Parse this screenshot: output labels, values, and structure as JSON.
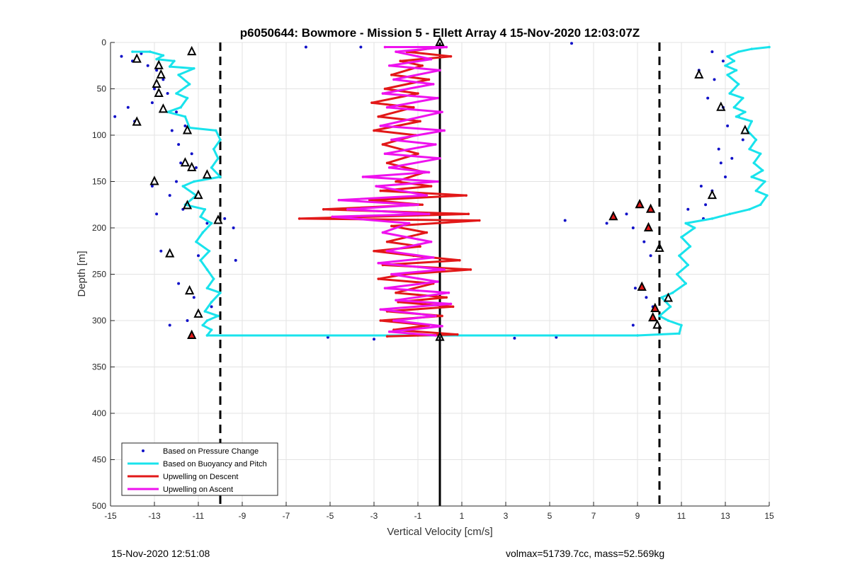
{
  "chart_data": {
    "type": "scatter",
    "title": "p6050644: Bowmore - Mission 5 - Ellett Array 4 15-Nov-2020 12:03:07Z",
    "xlabel": "Vertical Velocity [cm/s]",
    "ylabel": "Depth [m]",
    "xlim": [
      -15,
      15
    ],
    "ylim": [
      0,
      500
    ],
    "y_reversed": true,
    "x_ticks": [
      -15,
      -13,
      -11,
      -9,
      -7,
      -5,
      -3,
      -1,
      1,
      3,
      5,
      7,
      9,
      11,
      13,
      15
    ],
    "y_ticks": [
      0,
      50,
      100,
      150,
      200,
      250,
      300,
      350,
      400,
      450,
      500
    ],
    "grid": true,
    "legend_position": "bottom-left",
    "reference_lines": [
      {
        "x": -10,
        "style": "dashed",
        "color": "#000000"
      },
      {
        "x": 0,
        "style": "solid",
        "color": "#000000"
      },
      {
        "x": 10,
        "style": "dashed",
        "color": "#000000"
      }
    ],
    "series": [
      {
        "name": "Based on Pressure Change",
        "style": "dots",
        "color": "#1010c8",
        "points": [
          [
            -14.5,
            15
          ],
          [
            -14.0,
            20
          ],
          [
            -13.6,
            12
          ],
          [
            -13.3,
            25
          ],
          [
            -12.9,
            30
          ],
          [
            -12.6,
            40
          ],
          [
            -13.0,
            50
          ],
          [
            -12.4,
            55
          ],
          [
            -13.1,
            65
          ],
          [
            -14.2,
            70
          ],
          [
            -14.8,
            80
          ],
          [
            -13.9,
            85
          ],
          [
            -12.0,
            75
          ],
          [
            -11.6,
            90
          ],
          [
            -12.2,
            95
          ],
          [
            -11.9,
            110
          ],
          [
            -11.3,
            120
          ],
          [
            -11.8,
            130
          ],
          [
            -11.1,
            135
          ],
          [
            -12.0,
            150
          ],
          [
            -13.1,
            155
          ],
          [
            -12.3,
            165
          ],
          [
            -11.7,
            180
          ],
          [
            -12.9,
            185
          ],
          [
            -10.6,
            195
          ],
          [
            -9.8,
            190
          ],
          [
            -9.4,
            200
          ],
          [
            -12.7,
            225
          ],
          [
            -11.0,
            230
          ],
          [
            -9.3,
            235
          ],
          [
            -11.9,
            260
          ],
          [
            -11.2,
            275
          ],
          [
            -10.4,
            285
          ],
          [
            -11.5,
            300
          ],
          [
            -12.3,
            305
          ],
          [
            -5.1,
            318
          ],
          [
            -3.0,
            320
          ],
          [
            3.4,
            319
          ],
          [
            5.3,
            318
          ],
          [
            -6.1,
            5
          ],
          [
            -3.6,
            5
          ],
          [
            6.0,
            1
          ],
          [
            5.7,
            192
          ],
          [
            7.6,
            195
          ],
          [
            8.5,
            185
          ],
          [
            8.8,
            200
          ],
          [
            9.3,
            215
          ],
          [
            9.6,
            230
          ],
          [
            8.9,
            265
          ],
          [
            9.4,
            275
          ],
          [
            9.7,
            285
          ],
          [
            8.8,
            305
          ],
          [
            12.4,
            10
          ],
          [
            12.9,
            20
          ],
          [
            11.8,
            30
          ],
          [
            12.5,
            40
          ],
          [
            12.2,
            60
          ],
          [
            12.9,
            70
          ],
          [
            13.6,
            80
          ],
          [
            13.1,
            90
          ],
          [
            13.8,
            105
          ],
          [
            12.7,
            115
          ],
          [
            13.3,
            125
          ],
          [
            12.8,
            130
          ],
          [
            13.0,
            145
          ],
          [
            11.9,
            155
          ],
          [
            12.4,
            160
          ],
          [
            12.1,
            175
          ],
          [
            11.3,
            180
          ],
          [
            12.0,
            190
          ]
        ]
      },
      {
        "name": "Based on Buoyancy and Pitch",
        "style": "line",
        "color": "#19e3ec",
        "points": [
          [
            -14.0,
            10
          ],
          [
            -13.2,
            10
          ],
          [
            -12.6,
            14
          ],
          [
            -12.9,
            18
          ],
          [
            -12.1,
            20
          ],
          [
            -12.3,
            26
          ],
          [
            -11.2,
            28
          ],
          [
            -11.9,
            35
          ],
          [
            -11.4,
            45
          ],
          [
            -12.0,
            55
          ],
          [
            -11.5,
            60
          ],
          [
            -11.8,
            70
          ],
          [
            -12.4,
            75
          ],
          [
            -11.6,
            80
          ],
          [
            -11.4,
            92
          ],
          [
            -10.2,
            95
          ],
          [
            -10.0,
            105
          ],
          [
            -10.3,
            115
          ],
          [
            -10.1,
            125
          ],
          [
            -10.4,
            135
          ],
          [
            -10.0,
            145
          ],
          [
            -11.2,
            150
          ],
          [
            -11.7,
            155
          ],
          [
            -11.1,
            165
          ],
          [
            -11.6,
            175
          ],
          [
            -10.7,
            180
          ],
          [
            -10.9,
            188
          ],
          [
            -10.4,
            195
          ],
          [
            -10.8,
            205
          ],
          [
            -11.1,
            215
          ],
          [
            -10.5,
            225
          ],
          [
            -10.9,
            235
          ],
          [
            -10.6,
            245
          ],
          [
            -10.3,
            255
          ],
          [
            -10.6,
            265
          ],
          [
            -10.0,
            270
          ],
          [
            -10.4,
            280
          ],
          [
            -10.7,
            290
          ],
          [
            -10.1,
            295
          ],
          [
            -10.6,
            300
          ],
          [
            -10.8,
            305
          ],
          [
            -10.4,
            310
          ],
          [
            -10.6,
            316
          ],
          [
            -1.0,
            316
          ],
          [
            9.0,
            316
          ],
          [
            10.9,
            314
          ],
          [
            11.0,
            305
          ],
          [
            10.4,
            300
          ],
          [
            10.0,
            295
          ],
          [
            10.5,
            285
          ],
          [
            10.1,
            275
          ],
          [
            10.6,
            270
          ],
          [
            11.2,
            260
          ],
          [
            10.8,
            250
          ],
          [
            11.3,
            240
          ],
          [
            10.9,
            230
          ],
          [
            11.4,
            220
          ],
          [
            11.0,
            210
          ],
          [
            11.6,
            200
          ],
          [
            11.2,
            195
          ],
          [
            12.4,
            190
          ],
          [
            13.2,
            185
          ],
          [
            14.1,
            180
          ],
          [
            14.6,
            175
          ],
          [
            14.9,
            165
          ],
          [
            14.4,
            160
          ],
          [
            14.8,
            150
          ],
          [
            14.2,
            145
          ],
          [
            14.7,
            138
          ],
          [
            14.3,
            130
          ],
          [
            14.6,
            120
          ],
          [
            14.1,
            115
          ],
          [
            14.4,
            105
          ],
          [
            14.0,
            95
          ],
          [
            14.2,
            85
          ],
          [
            13.5,
            80
          ],
          [
            13.9,
            75
          ],
          [
            13.4,
            70
          ],
          [
            13.8,
            60
          ],
          [
            13.2,
            55
          ],
          [
            13.6,
            45
          ],
          [
            13.1,
            35
          ],
          [
            13.5,
            30
          ],
          [
            13.0,
            25
          ],
          [
            13.4,
            20
          ],
          [
            13.1,
            15
          ],
          [
            13.6,
            10
          ],
          [
            14.2,
            7
          ],
          [
            15.0,
            5
          ]
        ]
      },
      {
        "name": "Upwelling on Descent",
        "style": "line",
        "color": "#e21818",
        "points": [
          [
            0.0,
            5
          ],
          [
            -1.5,
            10
          ],
          [
            0.5,
            15
          ],
          [
            -1.8,
            20
          ],
          [
            -0.8,
            25
          ],
          [
            -2.2,
            35
          ],
          [
            -0.5,
            40
          ],
          [
            -2.5,
            50
          ],
          [
            -1.0,
            55
          ],
          [
            -3.1,
            65
          ],
          [
            -1.2,
            70
          ],
          [
            -2.8,
            80
          ],
          [
            -0.9,
            85
          ],
          [
            -3.0,
            95
          ],
          [
            -1.1,
            100
          ],
          [
            -2.6,
            110
          ],
          [
            -1.0,
            120
          ],
          [
            -2.4,
            130
          ],
          [
            -0.7,
            140
          ],
          [
            -2.0,
            150
          ],
          [
            -0.4,
            155
          ],
          [
            -2.7,
            160
          ],
          [
            1.2,
            165
          ],
          [
            -3.2,
            170
          ],
          [
            -0.8,
            175
          ],
          [
            -5.3,
            180
          ],
          [
            1.3,
            185
          ],
          [
            -6.4,
            190
          ],
          [
            1.8,
            192
          ],
          [
            -2.2,
            198
          ],
          [
            -0.6,
            205
          ],
          [
            -2.4,
            215
          ],
          [
            -0.9,
            220
          ],
          [
            -3.0,
            225
          ],
          [
            -1.2,
            230
          ],
          [
            0.9,
            235
          ],
          [
            -2.6,
            240
          ],
          [
            1.4,
            245
          ],
          [
            -1.6,
            250
          ],
          [
            -2.8,
            255
          ],
          [
            -0.3,
            260
          ],
          [
            -2.0,
            270
          ],
          [
            0.3,
            275
          ],
          [
            -1.9,
            280
          ],
          [
            0.6,
            285
          ],
          [
            -2.4,
            290
          ],
          [
            0.1,
            295
          ],
          [
            -2.7,
            300
          ],
          [
            -0.5,
            305
          ],
          [
            -2.1,
            310
          ],
          [
            0.8,
            315
          ],
          [
            -2.4,
            317
          ]
        ]
      },
      {
        "name": "Upwelling on Ascent",
        "style": "line",
        "color": "#ee12ee",
        "points": [
          [
            -2.5,
            5
          ],
          [
            0.3,
            5
          ],
          [
            -2.0,
            10
          ],
          [
            -0.4,
            18
          ],
          [
            -2.3,
            25
          ],
          [
            0.0,
            30
          ],
          [
            -2.1,
            40
          ],
          [
            -0.3,
            45
          ],
          [
            -2.6,
            55
          ],
          [
            -0.1,
            60
          ],
          [
            -2.4,
            70
          ],
          [
            0.1,
            75
          ],
          [
            -2.7,
            90
          ],
          [
            0.2,
            95
          ],
          [
            -2.2,
            105
          ],
          [
            -0.2,
            110
          ],
          [
            -2.5,
            120
          ],
          [
            0.0,
            125
          ],
          [
            -2.3,
            135
          ],
          [
            -0.5,
            140
          ],
          [
            -3.5,
            145
          ],
          [
            -0.1,
            150
          ],
          [
            -2.9,
            155
          ],
          [
            -0.6,
            165
          ],
          [
            -4.6,
            170
          ],
          [
            -1.0,
            175
          ],
          [
            -4.2,
            180
          ],
          [
            -0.5,
            185
          ],
          [
            -4.9,
            188
          ],
          [
            -1.4,
            195
          ],
          [
            -2.6,
            205
          ],
          [
            -0.4,
            215
          ],
          [
            -2.4,
            225
          ],
          [
            -0.3,
            232
          ],
          [
            -2.8,
            238
          ],
          [
            0.2,
            245
          ],
          [
            -2.2,
            250
          ],
          [
            -0.1,
            258
          ],
          [
            -2.5,
            265
          ],
          [
            0.4,
            270
          ],
          [
            -2.0,
            278
          ],
          [
            0.5,
            282
          ],
          [
            -2.7,
            288
          ],
          [
            -0.2,
            295
          ],
          [
            -2.1,
            300
          ],
          [
            0.1,
            306
          ],
          [
            -2.3,
            312
          ],
          [
            -0.2,
            316
          ]
        ]
      },
      {
        "name": "markers-outline",
        "style": "triangles",
        "color": "#000000",
        "points": [
          [
            -11.3,
            10
          ],
          [
            -13.8,
            18
          ],
          [
            -12.8,
            25
          ],
          [
            -12.7,
            35
          ],
          [
            -12.9,
            45
          ],
          [
            -12.8,
            55
          ],
          [
            -12.6,
            72
          ],
          [
            -13.8,
            86
          ],
          [
            -11.5,
            95
          ],
          [
            -11.6,
            130
          ],
          [
            -11.3,
            135
          ],
          [
            -10.6,
            143
          ],
          [
            -13.0,
            150
          ],
          [
            -11.0,
            165
          ],
          [
            -11.5,
            176
          ],
          [
            -10.1,
            192
          ],
          [
            -12.3,
            228
          ],
          [
            -11.4,
            268
          ],
          [
            -11.0,
            293
          ],
          [
            12.8,
            70
          ],
          [
            11.8,
            35
          ],
          [
            13.9,
            95
          ],
          [
            12.4,
            165
          ],
          [
            10.0,
            222
          ],
          [
            10.4,
            276
          ],
          [
            9.9,
            305
          ],
          [
            0.0,
            0
          ],
          [
            0.0,
            318
          ]
        ]
      },
      {
        "name": "markers-filled",
        "style": "triangles",
        "color": "#e21818",
        "points": [
          [
            -11.3,
            316
          ],
          [
            9.1,
            175
          ],
          [
            9.6,
            180
          ],
          [
            7.9,
            188
          ],
          [
            9.5,
            200
          ],
          [
            9.2,
            264
          ],
          [
            9.8,
            287
          ],
          [
            9.7,
            297
          ]
        ]
      }
    ]
  },
  "legend": {
    "items": [
      {
        "label": "Based on Pressure Change",
        "color": "#1010c8",
        "style": "dots"
      },
      {
        "label": "Based on Buoyancy and Pitch",
        "color": "#19e3ec",
        "style": "line"
      },
      {
        "label": "Upwelling on Descent",
        "color": "#e21818",
        "style": "line"
      },
      {
        "label": "Upwelling on Ascent",
        "color": "#ee12ee",
        "style": "line"
      }
    ]
  },
  "footer": {
    "left": "15-Nov-2020 12:51:08",
    "right": "volmax=51739.7cc, mass=52.569kg"
  }
}
